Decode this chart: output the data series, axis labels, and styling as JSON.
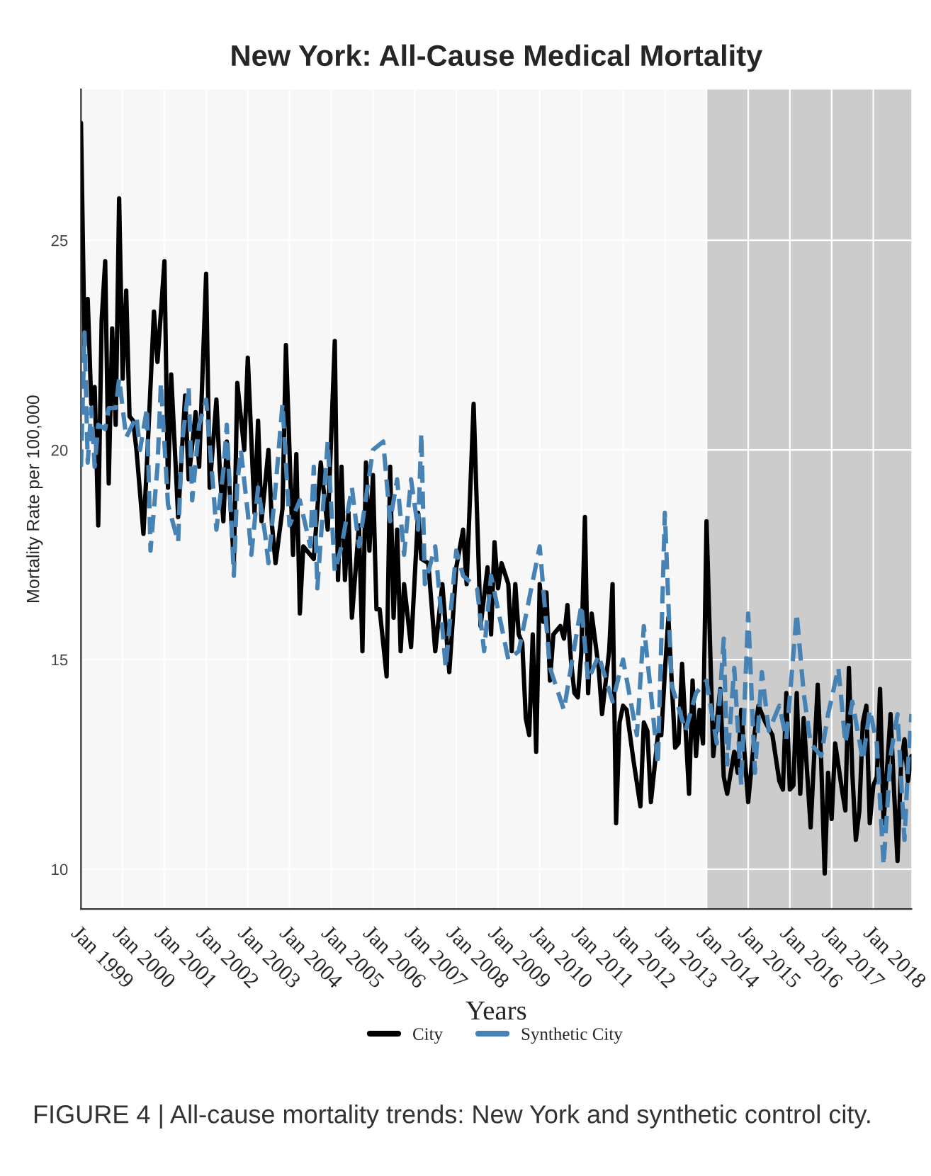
{
  "chart_data": {
    "type": "line",
    "title": "New York: All-Cause Medical Mortality",
    "xlabel": "Years",
    "ylabel": "Mortality Rate per 100,000",
    "annotations": [
      "FIGURE 4 | All-cause mortality trends: New York and synthetic control city."
    ],
    "xlim": [
      "1999-01",
      "2018-12"
    ],
    "ylim": [
      9.05,
      28.6
    ],
    "xticks": [
      {
        "value": "1999-01",
        "label": "Jan 1999"
      },
      {
        "value": "2000-01",
        "label": "Jan 2000"
      },
      {
        "value": "2001-01",
        "label": "Jan 2001"
      },
      {
        "value": "2002-01",
        "label": "Jan 2002"
      },
      {
        "value": "2003-01",
        "label": "Jan 2003"
      },
      {
        "value": "2004-01",
        "label": "Jan 2004"
      },
      {
        "value": "2005-01",
        "label": "Jan 2005"
      },
      {
        "value": "2006-01",
        "label": "Jan 2006"
      },
      {
        "value": "2007-01",
        "label": "Jan 2007"
      },
      {
        "value": "2008-01",
        "label": "Jan 2008"
      },
      {
        "value": "2009-01",
        "label": "Jan 2009"
      },
      {
        "value": "2010-01",
        "label": "Jan 2010"
      },
      {
        "value": "2011-01",
        "label": "Jan 2011"
      },
      {
        "value": "2012-01",
        "label": "Jan 2012"
      },
      {
        "value": "2013-01",
        "label": "Jan 2013"
      },
      {
        "value": "2014-01",
        "label": "Jan 2014"
      },
      {
        "value": "2015-01",
        "label": "Jan 2015"
      },
      {
        "value": "2016-01",
        "label": "Jan 2016"
      },
      {
        "value": "2017-01",
        "label": "Jan 2017"
      },
      {
        "value": "2018-01",
        "label": "Jan 2018"
      }
    ],
    "yticks": [
      10,
      15,
      20,
      25
    ],
    "grid": true,
    "legend": "bottom",
    "bands": [
      {
        "axis": "x",
        "from": "2014-01",
        "to": "2018-12",
        "color": "#cccccc"
      }
    ],
    "series": [
      {
        "name": "City",
        "color": "#000000",
        "line_style": "solid",
        "x": [
          "1999-01",
          "1999-02",
          "1999-03",
          "1999-04",
          "1999-05",
          "1999-06",
          "1999-07",
          "1999-08",
          "1999-09",
          "1999-10",
          "1999-11",
          "1999-12",
          "2000-01",
          "2000-02",
          "2000-03",
          "2000-04",
          "2000-05",
          "2000-07",
          "2000-08",
          "2000-10",
          "2000-11",
          "2001-01",
          "2001-02",
          "2001-03",
          "2001-05",
          "2001-07",
          "2001-08",
          "2001-10",
          "2001-11",
          "2002-01",
          "2002-02",
          "2002-04",
          "2002-05",
          "2002-06",
          "2002-07",
          "2002-09",
          "2002-10",
          "2002-12",
          "2003-01",
          "2003-03",
          "2003-04",
          "2003-05",
          "2003-07",
          "2003-08",
          "2003-09",
          "2003-11",
          "2003-12",
          "2004-02",
          "2004-03",
          "2004-04",
          "2004-05",
          "2004-08",
          "2004-10",
          "2004-12",
          "2005-02",
          "2005-03",
          "2005-04",
          "2005-05",
          "2005-06",
          "2005-07",
          "2005-09",
          "2005-10",
          "2005-11",
          "2005-12",
          "2006-01",
          "2006-02",
          "2006-03",
          "2006-05",
          "2006-06",
          "2006-07",
          "2006-08",
          "2006-09",
          "2006-10",
          "2006-12",
          "2007-02",
          "2007-03",
          "2007-05",
          "2007-07",
          "2007-09",
          "2007-11",
          "2008-01",
          "2008-03",
          "2008-04",
          "2008-06",
          "2008-08",
          "2008-10",
          "2008-11",
          "2008-12",
          "2009-01",
          "2009-02",
          "2009-04",
          "2009-05",
          "2009-06",
          "2009-07",
          "2009-08",
          "2009-09",
          "2009-10",
          "2009-11",
          "2009-12",
          "2010-01",
          "2010-02",
          "2010-03",
          "2010-04",
          "2010-05",
          "2010-07",
          "2010-08",
          "2010-09",
          "2010-10",
          "2010-11",
          "2010-12",
          "2011-01",
          "2011-02",
          "2011-03",
          "2011-04",
          "2011-06",
          "2011-07",
          "2011-09",
          "2011-10",
          "2011-11",
          "2011-12",
          "2012-01",
          "2012-02",
          "2012-04",
          "2012-06",
          "2012-07",
          "2012-08",
          "2012-09",
          "2012-11",
          "2012-12",
          "2013-01",
          "2013-02",
          "2013-04",
          "2013-05",
          "2013-06",
          "2013-08",
          "2013-09",
          "2013-10",
          "2013-11",
          "2013-12",
          "2014-01",
          "2014-03",
          "2014-05",
          "2014-06",
          "2014-07",
          "2014-09",
          "2014-10",
          "2014-11",
          "2015-01",
          "2015-03",
          "2015-04",
          "2015-06",
          "2015-08",
          "2015-10",
          "2015-11",
          "2015-12",
          "2016-01",
          "2016-02",
          "2016-03",
          "2016-04",
          "2016-05",
          "2016-07",
          "2016-09",
          "2016-10",
          "2016-11",
          "2016-12",
          "2017-01",
          "2017-02",
          "2017-04",
          "2017-05",
          "2017-06",
          "2017-07",
          "2017-08",
          "2017-09",
          "2017-10",
          "2017-11",
          "2017-12",
          "2018-01",
          "2018-02",
          "2018-03",
          "2018-04",
          "2018-06",
          "2018-07",
          "2018-08",
          "2018-09",
          "2018-10",
          "2018-11",
          "2018-12"
        ],
        "values": [
          27.8,
          22.5,
          23.6,
          21.1,
          21.5,
          18.2,
          23.1,
          24.5,
          19.2,
          22.9,
          20.6,
          26.0,
          21.7,
          23.8,
          20.8,
          20.7,
          20.0,
          18.0,
          19.7,
          23.3,
          22.1,
          24.5,
          19.1,
          21.8,
          18.4,
          21.3,
          19.3,
          20.9,
          19.6,
          24.2,
          19.1,
          21.2,
          19.5,
          18.3,
          20.2,
          17.3,
          21.6,
          20.0,
          22.2,
          18.5,
          20.7,
          18.3,
          20.0,
          18.2,
          17.3,
          18.6,
          22.5,
          17.5,
          19.9,
          16.1,
          17.7,
          17.4,
          19.7,
          18.1,
          22.6,
          16.9,
          19.6,
          16.9,
          18.5,
          16.0,
          18.2,
          15.2,
          19.7,
          17.6,
          19.4,
          16.2,
          16.2,
          14.6,
          19.6,
          16.0,
          18.1,
          15.2,
          16.8,
          15.3,
          18.5,
          17.4,
          17.3,
          15.2,
          16.8,
          14.7,
          17.2,
          18.1,
          16.8,
          21.1,
          15.8,
          17.2,
          15.6,
          17.8,
          16.7,
          17.3,
          16.8,
          15.2,
          16.8,
          15.6,
          15.4,
          13.6,
          13.2,
          15.6,
          12.8,
          16.8,
          15.9,
          16.6,
          14.5,
          15.6,
          15.8,
          15.5,
          16.3,
          15.0,
          14.2,
          14.1,
          15.2,
          18.4,
          14.2,
          16.1,
          14.8,
          13.7,
          15.2,
          16.8,
          11.1,
          13.5,
          13.9,
          13.8,
          12.6,
          11.5,
          13.5,
          13.3,
          11.6,
          13.2,
          13.2,
          14.7,
          16.0,
          12.9,
          13.0,
          14.9,
          11.8,
          14.5,
          12.7,
          13.8,
          13.0,
          18.3,
          12.7,
          14.3,
          12.2,
          11.8,
          12.8,
          12.3,
          13.8,
          11.6,
          13.3,
          13.9,
          13.5,
          13.2,
          12.1,
          11.9,
          14.2,
          11.9,
          12.0,
          14.2,
          11.8,
          13.6,
          11.0,
          14.4,
          12.6,
          9.9,
          12.3,
          11.2,
          13.0,
          11.9,
          11.4,
          14.8,
          12.3,
          10.7,
          11.4,
          13.5,
          13.9,
          11.1,
          12.0,
          12.2,
          14.3,
          11.1,
          13.7,
          11.9,
          10.2,
          12.5,
          13.1,
          12.1,
          12.7
        ]
      },
      {
        "name": "Synthetic City",
        "color": "#4682b4",
        "line_style": "dashed",
        "x": [
          "1999-01",
          "1999-02",
          "1999-03",
          "1999-04",
          "1999-05",
          "1999-06",
          "1999-08",
          "1999-09",
          "1999-11",
          "1999-12",
          "2000-02",
          "2000-05",
          "2000-06",
          "2000-08",
          "2000-09",
          "2000-11",
          "2000-12",
          "2001-02",
          "2001-05",
          "2001-06",
          "2001-08",
          "2001-09",
          "2001-11",
          "2002-01",
          "2002-03",
          "2002-04",
          "2002-06",
          "2002-07",
          "2002-09",
          "2002-10",
          "2002-11",
          "2003-01",
          "2003-02",
          "2003-04",
          "2003-06",
          "2003-07",
          "2003-09",
          "2003-11",
          "2004-01",
          "2004-04",
          "2004-07",
          "2004-08",
          "2004-09",
          "2004-12",
          "2005-02",
          "2005-04",
          "2005-07",
          "2005-09",
          "2006-01",
          "2006-04",
          "2006-06",
          "2006-08",
          "2006-10",
          "2006-12",
          "2007-02",
          "2007-03",
          "2007-04",
          "2007-07",
          "2007-10",
          "2008-01",
          "2008-03",
          "2008-07",
          "2008-09",
          "2008-11",
          "2009-04",
          "2009-07",
          "2010-01",
          "2010-04",
          "2010-08",
          "2011-01",
          "2011-03",
          "2011-06",
          "2011-10",
          "2012-01",
          "2012-05",
          "2012-07",
          "2012-09",
          "2012-11",
          "2013-01",
          "2013-03",
          "2013-07",
          "2013-10",
          "2014-01",
          "2014-04",
          "2014-06",
          "2014-07",
          "2014-09",
          "2014-11",
          "2015-01",
          "2015-03",
          "2015-05",
          "2015-07",
          "2015-10",
          "2015-12",
          "2016-03",
          "2016-05",
          "2016-07",
          "2016-10",
          "2016-12",
          "2017-03",
          "2017-05",
          "2017-07",
          "2017-10",
          "2017-12",
          "2018-02",
          "2018-04",
          "2018-06",
          "2018-08",
          "2018-10",
          "2018-11",
          "2018-12"
        ],
        "values": [
          19.6,
          22.8,
          19.7,
          21.0,
          19.6,
          20.6,
          20.5,
          21.0,
          21.0,
          21.7,
          20.3,
          20.8,
          20.0,
          21.0,
          17.6,
          19.6,
          21.6,
          18.7,
          17.8,
          20.1,
          21.5,
          18.8,
          20.6,
          21.2,
          19.2,
          18.1,
          19.5,
          20.6,
          17.0,
          19.2,
          20.0,
          18.5,
          17.5,
          19.1,
          18.0,
          17.3,
          19.1,
          21.1,
          18.2,
          18.8,
          17.7,
          19.6,
          16.7,
          20.2,
          17.1,
          17.7,
          19.1,
          17.7,
          20.0,
          20.2,
          18.3,
          19.3,
          17.5,
          19.3,
          18.1,
          20.4,
          16.8,
          17.7,
          14.8,
          17.6,
          17.0,
          16.7,
          15.2,
          17.0,
          15.0,
          15.2,
          17.7,
          14.8,
          13.8,
          16.3,
          14.5,
          15.1,
          14.0,
          15.0,
          13.2,
          15.8,
          14.2,
          12.5,
          18.5,
          14.4,
          13.3,
          14.2,
          14.5,
          13.0,
          15.5,
          12.5,
          14.8,
          12.0,
          16.1,
          12.3,
          14.7,
          13.3,
          13.9,
          13.1,
          16.1,
          14.2,
          13.0,
          12.7,
          13.7,
          14.8,
          13.0,
          14.0,
          12.6,
          13.8,
          13.0,
          10.1,
          12.7,
          13.7,
          10.7,
          12.5,
          13.7
        ]
      }
    ]
  }
}
